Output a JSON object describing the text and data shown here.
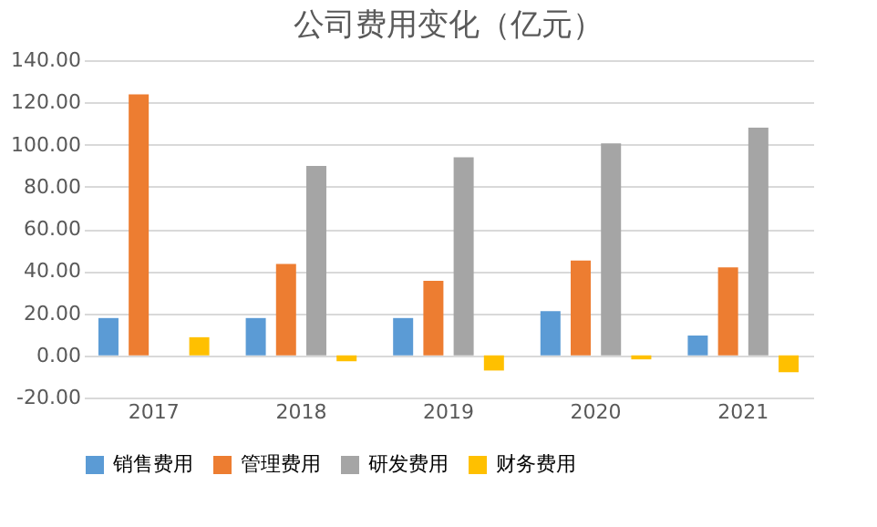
{
  "chart_data": {
    "type": "bar",
    "title": "公司费用变化（亿元）",
    "categories": [
      "2017",
      "2018",
      "2019",
      "2020",
      "2021"
    ],
    "series": [
      {
        "name": "销售费用",
        "color": "#5b9bd5",
        "values": [
          17.7,
          17.7,
          17.7,
          21.0,
          9.4
        ]
      },
      {
        "name": "管理费用",
        "color": "#ed7d31",
        "values": [
          123.8,
          43.4,
          35.4,
          45.0,
          41.7
        ]
      },
      {
        "name": "研发费用",
        "color": "#a5a5a5",
        "values": [
          0,
          89.8,
          93.9,
          100.5,
          108.0
        ]
      },
      {
        "name": "财务费用",
        "color": "#ffc000",
        "values": [
          8.6,
          -2.8,
          -7.2,
          -1.9,
          -8.0
        ]
      }
    ],
    "ylim": [
      -20,
      140
    ],
    "yticks": [
      {
        "value": -20,
        "label": "-20.00"
      },
      {
        "value": 0,
        "label": "0.00"
      },
      {
        "value": 20,
        "label": "20.00"
      },
      {
        "value": 40,
        "label": "40.00"
      },
      {
        "value": 60,
        "label": "60.00"
      },
      {
        "value": 80,
        "label": "80.00"
      },
      {
        "value": 100,
        "label": "100.00"
      },
      {
        "value": 120,
        "label": "120.00"
      },
      {
        "value": 140,
        "label": "140.00"
      }
    ],
    "grid": "y",
    "legend": "bottom"
  }
}
